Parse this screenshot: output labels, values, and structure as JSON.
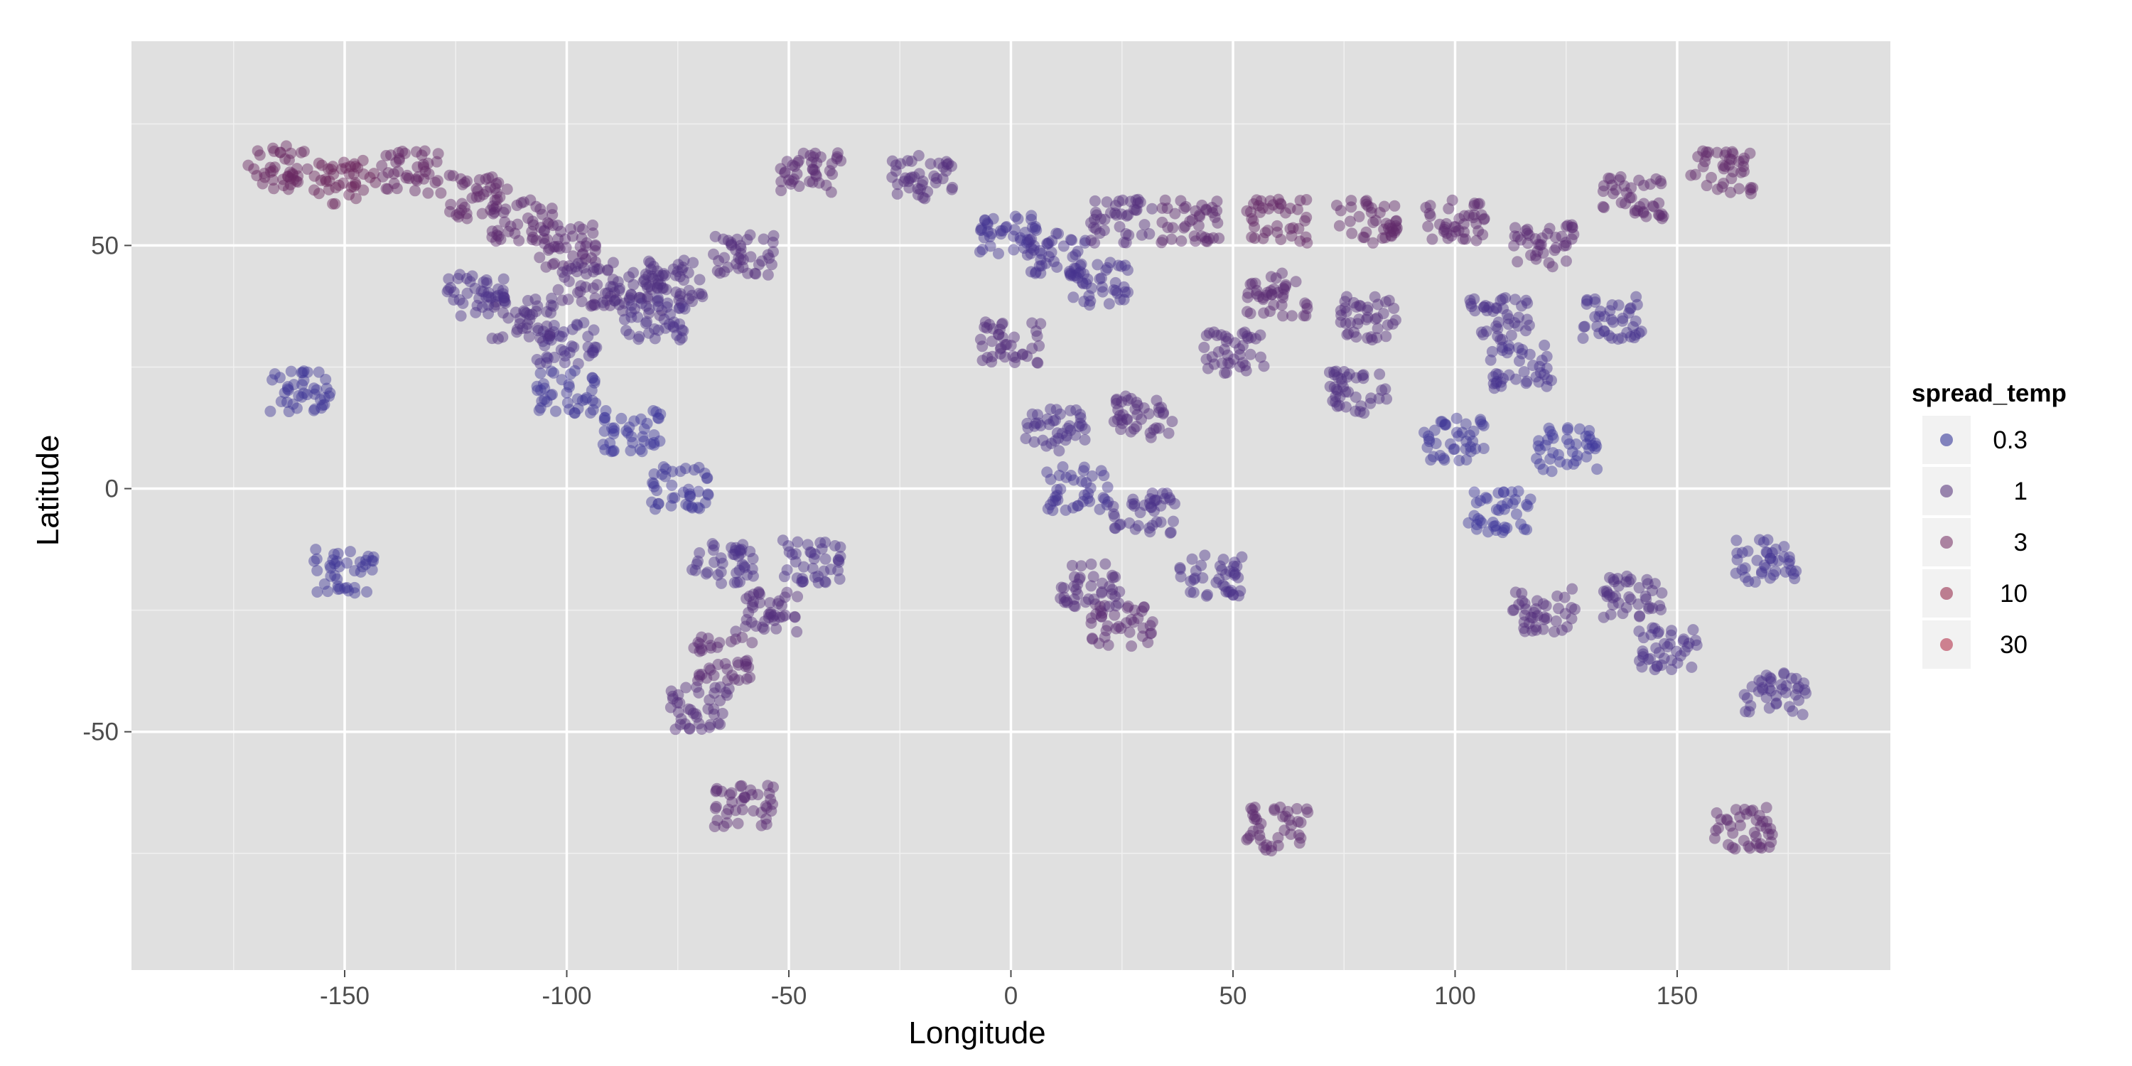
{
  "chart_data": {
    "type": "scatter",
    "title": "",
    "xlabel": "Longitude",
    "ylabel": "Latitude",
    "xlim": [
      -198,
      198
    ],
    "ylim": [
      -99,
      92
    ],
    "x_ticks": [
      -150,
      -100,
      -50,
      0,
      50,
      100,
      150
    ],
    "x_tick_labels": [
      "-150",
      "-100",
      "-50",
      "0",
      "50",
      "100",
      "150"
    ],
    "y_ticks": [
      -50,
      0,
      50
    ],
    "y_tick_labels": [
      "-50",
      "0",
      "50"
    ],
    "grid": true,
    "legend": {
      "title": "spread_temp",
      "placement": "right",
      "entries": [
        {
          "label": "0.3",
          "color": "#5b5cab"
        },
        {
          "label": "1",
          "color": "#7a5f96"
        },
        {
          "label": "3",
          "color": "#935e86"
        },
        {
          "label": "10",
          "color": "#a9566f"
        },
        {
          "label": "30",
          "color": "#c05a6e"
        }
      ]
    },
    "colors": {
      "panel": "#e0e0e0",
      "grid_major": "#ffffff",
      "grid_minor": "#f0f0f0",
      "low": "#3a3aa0",
      "high": "#7a1f48"
    },
    "series": [
      {
        "point_groups": [
          {
            "lon": -165,
            "lat": 66,
            "temp": 8
          },
          {
            "lon": -150,
            "lat": 63,
            "temp": 10
          },
          {
            "lon": -135,
            "lat": 65,
            "temp": 6
          },
          {
            "lon": -120,
            "lat": 60,
            "temp": 5
          },
          {
            "lon": -110,
            "lat": 55,
            "temp": 4
          },
          {
            "lon": -100,
            "lat": 50,
            "temp": 3
          },
          {
            "lon": -95,
            "lat": 42,
            "temp": 2
          },
          {
            "lon": -85,
            "lat": 40,
            "temp": 1.5
          },
          {
            "lon": -80,
            "lat": 35,
            "temp": 1
          },
          {
            "lon": -75,
            "lat": 43,
            "temp": 1.5
          },
          {
            "lon": -100,
            "lat": 30,
            "temp": 1
          },
          {
            "lon": -110,
            "lat": 35,
            "temp": 1.5
          },
          {
            "lon": -120,
            "lat": 40,
            "temp": 1
          },
          {
            "lon": -60,
            "lat": 48,
            "temp": 2
          },
          {
            "lon": -100,
            "lat": 20,
            "temp": 0.5
          },
          {
            "lon": -85,
            "lat": 12,
            "temp": 0.4
          },
          {
            "lon": -75,
            "lat": 0,
            "temp": 0.5
          },
          {
            "lon": -65,
            "lat": -15,
            "temp": 1
          },
          {
            "lon": -55,
            "lat": -25,
            "temp": 2
          },
          {
            "lon": -65,
            "lat": -35,
            "temp": 3
          },
          {
            "lon": -70,
            "lat": -45,
            "temp": 2
          },
          {
            "lon": -45,
            "lat": -15,
            "temp": 1
          },
          {
            "lon": -45,
            "lat": 65,
            "temp": 3
          },
          {
            "lon": -20,
            "lat": 64,
            "temp": 2
          },
          {
            "lon": 0,
            "lat": 52,
            "temp": 0.6
          },
          {
            "lon": 10,
            "lat": 48,
            "temp": 0.8
          },
          {
            "lon": 25,
            "lat": 55,
            "temp": 2
          },
          {
            "lon": 20,
            "lat": 42,
            "temp": 0.8
          },
          {
            "lon": 40,
            "lat": 55,
            "temp": 4
          },
          {
            "lon": 60,
            "lat": 55,
            "temp": 6
          },
          {
            "lon": 80,
            "lat": 55,
            "temp": 5
          },
          {
            "lon": 100,
            "lat": 55,
            "temp": 4
          },
          {
            "lon": 120,
            "lat": 50,
            "temp": 3
          },
          {
            "lon": 140,
            "lat": 60,
            "temp": 4
          },
          {
            "lon": 160,
            "lat": 65,
            "temp": 5
          },
          {
            "lon": 60,
            "lat": 40,
            "temp": 3
          },
          {
            "lon": 80,
            "lat": 35,
            "temp": 2
          },
          {
            "lon": 110,
            "lat": 35,
            "temp": 1
          },
          {
            "lon": 115,
            "lat": 25,
            "temp": 0.8
          },
          {
            "lon": 78,
            "lat": 20,
            "temp": 1.5
          },
          {
            "lon": 50,
            "lat": 28,
            "temp": 2
          },
          {
            "lon": 100,
            "lat": 10,
            "temp": 0.5
          },
          {
            "lon": 110,
            "lat": -5,
            "temp": 0.4
          },
          {
            "lon": 125,
            "lat": 8,
            "temp": 0.4
          },
          {
            "lon": 135,
            "lat": 35,
            "temp": 0.8
          },
          {
            "lon": 10,
            "lat": 12,
            "temp": 1
          },
          {
            "lon": 0,
            "lat": 30,
            "temp": 2
          },
          {
            "lon": 30,
            "lat": 15,
            "temp": 2
          },
          {
            "lon": 15,
            "lat": 0,
            "temp": 0.6
          },
          {
            "lon": 30,
            "lat": -5,
            "temp": 1
          },
          {
            "lon": 25,
            "lat": -28,
            "temp": 3
          },
          {
            "lon": 18,
            "lat": -20,
            "temp": 2
          },
          {
            "lon": 45,
            "lat": -18,
            "temp": 1
          },
          {
            "lon": 120,
            "lat": -25,
            "temp": 2
          },
          {
            "lon": 140,
            "lat": -22,
            "temp": 1.5
          },
          {
            "lon": 148,
            "lat": -33,
            "temp": 1
          },
          {
            "lon": 172,
            "lat": -42,
            "temp": 1
          },
          {
            "lon": 165,
            "lat": -70,
            "temp": 4
          },
          {
            "lon": -60,
            "lat": -65,
            "temp": 3
          },
          {
            "lon": 60,
            "lat": -70,
            "temp": 4
          },
          {
            "lon": -160,
            "lat": 20,
            "temp": 0.5
          },
          {
            "lon": -150,
            "lat": -17,
            "temp": 0.5
          },
          {
            "lon": 170,
            "lat": -15,
            "temp": 0.6
          }
        ]
      }
    ]
  }
}
